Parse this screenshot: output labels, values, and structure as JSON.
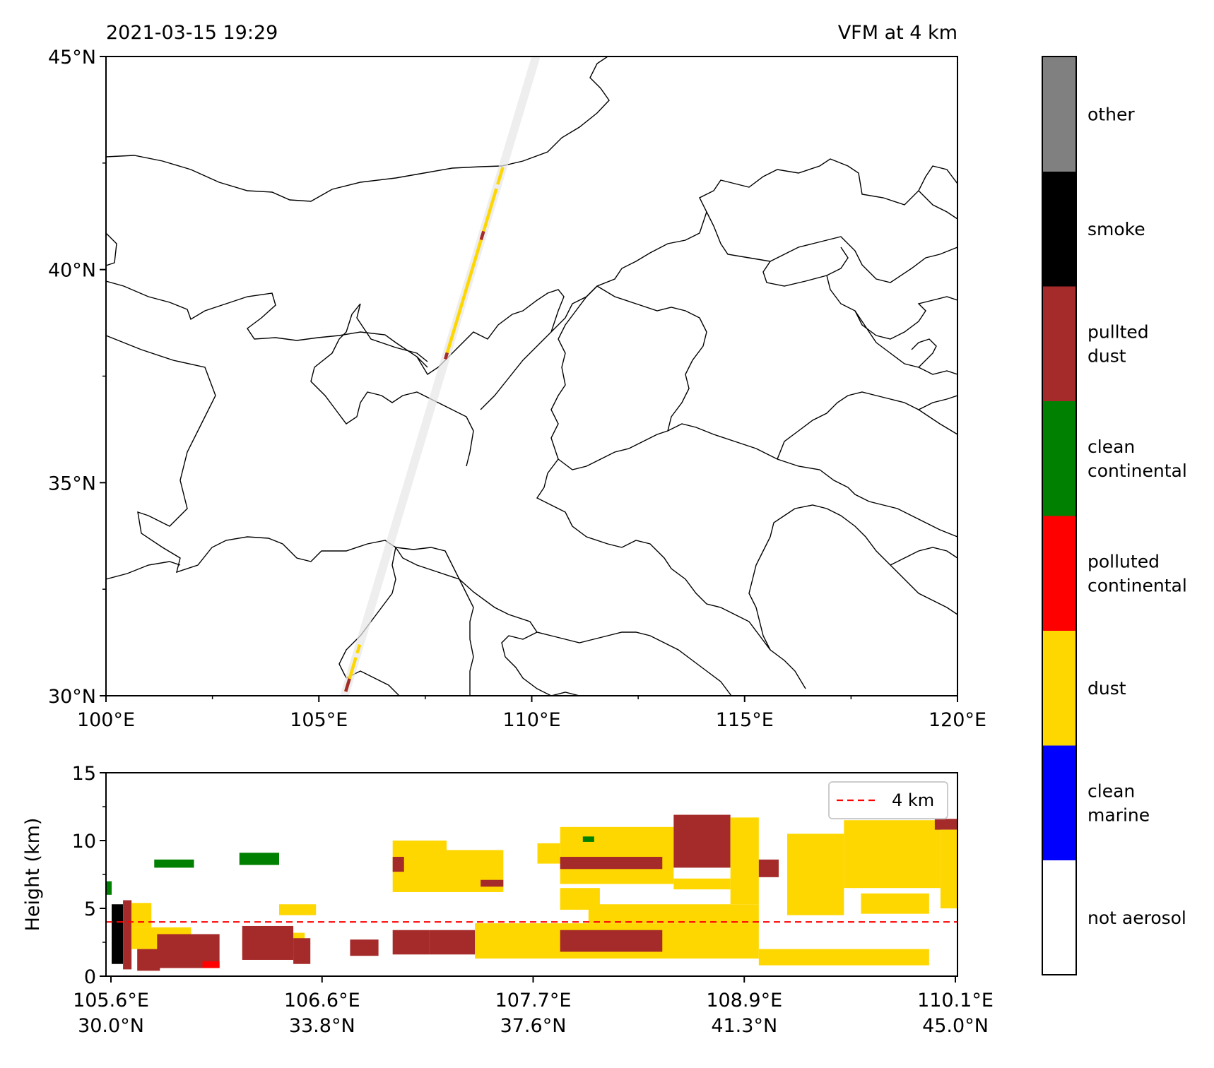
{
  "figure": {
    "title_left": "2021-03-15 19:29",
    "title_right": "VFM at 4 km"
  },
  "chart_data": [
    {
      "type": "map",
      "title_left": "2021-03-15 19:29",
      "title_right": "VFM at 4 km",
      "xlim": [
        100,
        120
      ],
      "ylim": [
        30,
        45
      ],
      "x_ticks": [
        {
          "value": 100,
          "label": "100°E"
        },
        {
          "value": 105,
          "label": "105°E"
        },
        {
          "value": 110,
          "label": "110°E"
        },
        {
          "value": 115,
          "label": "115°E"
        },
        {
          "value": 120,
          "label": "120°E"
        }
      ],
      "y_ticks": [
        {
          "value": 30,
          "label": "30°N"
        },
        {
          "value": 35,
          "label": "35°N"
        },
        {
          "value": 40,
          "label": "40°N"
        },
        {
          "value": 45,
          "label": "45°N"
        }
      ],
      "track": {
        "start": [
          105.6,
          30.0
        ],
        "end": [
          110.1,
          45.0
        ]
      },
      "track_segments": [
        {
          "lat_from": 30.1,
          "lat_to": 30.9,
          "class": "dust"
        },
        {
          "lat_from": 30.1,
          "lat_to": 30.4,
          "class": "pullted dust"
        },
        {
          "lat_from": 31.0,
          "lat_to": 31.2,
          "class": "dust"
        },
        {
          "lat_from": 37.9,
          "lat_to": 38.05,
          "class": "pullted dust"
        },
        {
          "lat_from": 38.05,
          "lat_to": 40.7,
          "class": "dust"
        },
        {
          "lat_from": 40.7,
          "lat_to": 40.9,
          "class": "pullted dust"
        },
        {
          "lat_from": 40.9,
          "lat_to": 41.9,
          "class": "dust"
        },
        {
          "lat_from": 42.0,
          "lat_to": 42.4,
          "class": "dust"
        }
      ]
    },
    {
      "type": "heatmap",
      "ylabel": "Height (km)",
      "ylim": [
        0,
        15
      ],
      "y_ticks": [
        0,
        5,
        10,
        15
      ],
      "x_ticks": [
        {
          "lon": "105.6°E",
          "lat": "30.0°N"
        },
        {
          "lon": "106.6°E",
          "lat": "33.8°N"
        },
        {
          "lon": "107.7°E",
          "lat": "37.6°N"
        },
        {
          "lon": "108.9°E",
          "lat": "41.3°N"
        },
        {
          "lon": "110.1°E",
          "lat": "45.0°N"
        }
      ],
      "x_range_lat": [
        30.0,
        45.0
      ],
      "reference_line": {
        "y": 4,
        "label": "4 km",
        "color": "#ff0000",
        "style": "dashed"
      },
      "legend_position": "upper-right",
      "regions": [
        {
          "lat": [
            30.0,
            30.1
          ],
          "h": [
            6.0,
            7.0
          ],
          "class": "clean continental"
        },
        {
          "lat": [
            30.1,
            30.3
          ],
          "h": [
            0.9,
            5.3
          ],
          "class": "smoke"
        },
        {
          "lat": [
            30.3,
            30.45
          ],
          "h": [
            0.5,
            5.6
          ],
          "class": "pullted dust"
        },
        {
          "lat": [
            30.45,
            31.5
          ],
          "h": [
            2.0,
            3.6
          ],
          "class": "dust"
        },
        {
          "lat": [
            30.45,
            30.8
          ],
          "h": [
            3.6,
            5.4
          ],
          "class": "dust"
        },
        {
          "lat": [
            30.9,
            32.0
          ],
          "h": [
            0.6,
            3.1
          ],
          "class": "pullted dust"
        },
        {
          "lat": [
            31.7,
            32.0
          ],
          "h": [
            0.6,
            1.1
          ],
          "class": "polluted continental"
        },
        {
          "lat": [
            30.55,
            30.95
          ],
          "h": [
            0.4,
            2.0
          ],
          "class": "pullted dust"
        },
        {
          "lat": [
            30.85,
            31.55
          ],
          "h": [
            8.0,
            8.6
          ],
          "class": "clean continental"
        },
        {
          "lat": [
            32.35,
            33.05
          ],
          "h": [
            8.2,
            9.1
          ],
          "class": "clean continental"
        },
        {
          "lat": [
            32.4,
            33.5
          ],
          "h": [
            1.5,
            3.2
          ],
          "class": "dust"
        },
        {
          "lat": [
            32.4,
            33.3
          ],
          "h": [
            1.2,
            3.7
          ],
          "class": "pullted dust"
        },
        {
          "lat": [
            33.3,
            33.6
          ],
          "h": [
            0.9,
            2.8
          ],
          "class": "pullted dust"
        },
        {
          "lat": [
            33.05,
            33.7
          ],
          "h": [
            4.5,
            5.3
          ],
          "class": "dust"
        },
        {
          "lat": [
            34.3,
            34.8
          ],
          "h": [
            1.5,
            2.7
          ],
          "class": "pullted dust"
        },
        {
          "lat": [
            35.05,
            35.7
          ],
          "h": [
            1.6,
            3.4
          ],
          "class": "pullted dust"
        },
        {
          "lat": [
            35.7,
            36.5
          ],
          "h": [
            1.6,
            3.4
          ],
          "class": "pullted dust"
        },
        {
          "lat": [
            36.5,
            41.5
          ],
          "h": [
            1.3,
            3.9
          ],
          "class": "dust"
        },
        {
          "lat": [
            38.0,
            39.8
          ],
          "h": [
            1.8,
            3.4
          ],
          "class": "pullted dust"
        },
        {
          "lat": [
            41.5,
            44.5
          ],
          "h": [
            0.8,
            2.0
          ],
          "class": "dust"
        },
        {
          "lat": [
            35.05,
            36.0
          ],
          "h": [
            6.2,
            10.0
          ],
          "class": "dust"
        },
        {
          "lat": [
            36.0,
            37.0
          ],
          "h": [
            6.2,
            9.3
          ],
          "class": "dust"
        },
        {
          "lat": [
            35.05,
            35.25
          ],
          "h": [
            7.7,
            8.8
          ],
          "class": "pullted dust"
        },
        {
          "lat": [
            36.6,
            37.0
          ],
          "h": [
            6.6,
            7.1
          ],
          "class": "pullted dust"
        },
        {
          "lat": [
            37.6,
            38.0
          ],
          "h": [
            8.3,
            9.8
          ],
          "class": "dust"
        },
        {
          "lat": [
            38.0,
            40.0
          ],
          "h": [
            6.8,
            11.0
          ],
          "class": "dust"
        },
        {
          "lat": [
            38.0,
            39.8
          ],
          "h": [
            7.9,
            8.8
          ],
          "class": "pullted dust"
        },
        {
          "lat": [
            38.4,
            38.6
          ],
          "h": [
            9.9,
            10.3
          ],
          "class": "clean continental"
        },
        {
          "lat": [
            38.0,
            38.7
          ],
          "h": [
            4.9,
            6.5
          ],
          "class": "dust"
        },
        {
          "lat": [
            38.5,
            41.5
          ],
          "h": [
            3.9,
            5.3
          ],
          "class": "dust"
        },
        {
          "lat": [
            40.0,
            41.0
          ],
          "h": [
            6.4,
            7.2
          ],
          "class": "dust"
        },
        {
          "lat": [
            40.0,
            41.0
          ],
          "h": [
            8.0,
            11.9
          ],
          "class": "pullted dust"
        },
        {
          "lat": [
            41.0,
            41.5
          ],
          "h": [
            5.3,
            11.7
          ],
          "class": "dust"
        },
        {
          "lat": [
            41.5,
            41.85
          ],
          "h": [
            7.3,
            8.6
          ],
          "class": "pullted dust"
        },
        {
          "lat": [
            42.0,
            43.0
          ],
          "h": [
            4.5,
            10.5
          ],
          "class": "dust"
        },
        {
          "lat": [
            43.3,
            44.5
          ],
          "h": [
            4.6,
            6.1
          ],
          "class": "dust"
        },
        {
          "lat": [
            43.0,
            44.7
          ],
          "h": [
            6.5,
            11.5
          ],
          "class": "dust"
        },
        {
          "lat": [
            44.6,
            45.0
          ],
          "h": [
            10.8,
            11.6
          ],
          "class": "pullted dust"
        },
        {
          "lat": [
            44.7,
            45.0
          ],
          "h": [
            5.0,
            10.8
          ],
          "class": "dust"
        }
      ]
    },
    {
      "type": "colorbar",
      "position": "right",
      "classes": [
        {
          "name": "not aerosol",
          "label_lines": [
            "not aerosol"
          ],
          "color": "#ffffff"
        },
        {
          "name": "clean marine",
          "label_lines": [
            "clean",
            "marine"
          ],
          "color": "#0000ff"
        },
        {
          "name": "dust",
          "label_lines": [
            "dust"
          ],
          "color": "#ffd700"
        },
        {
          "name": "polluted continental",
          "label_lines": [
            "polluted",
            "continental"
          ],
          "color": "#ff0000"
        },
        {
          "name": "clean continental",
          "label_lines": [
            "clean",
            "continental"
          ],
          "color": "#008000"
        },
        {
          "name": "pullted dust",
          "label_lines": [
            "pullted",
            "dust"
          ],
          "color": "#a52a2a"
        },
        {
          "name": "smoke",
          "label_lines": [
            "smoke"
          ],
          "color": "#000000"
        },
        {
          "name": "other",
          "label_lines": [
            "other"
          ],
          "color": "#808080"
        }
      ]
    }
  ]
}
